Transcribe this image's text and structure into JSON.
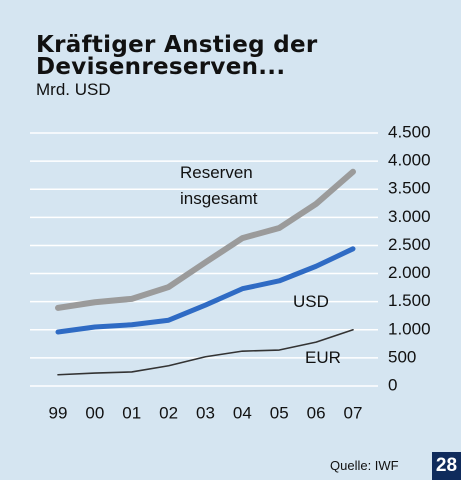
{
  "chart_data": {
    "type": "line",
    "title": "Kräftiger Anstieg der Devisenreserven...",
    "subtitle": "Mrd. USD",
    "categories": [
      "99",
      "00",
      "01",
      "02",
      "03",
      "04",
      "05",
      "06",
      "07"
    ],
    "series": [
      {
        "name": "Reserven insgesamt",
        "color": "#9b9b9b",
        "values": [
          1390,
          1490,
          1550,
          1760,
          2200,
          2630,
          2810,
          3240,
          3810
        ]
      },
      {
        "name": "USD",
        "color": "#2f6bc4",
        "values": [
          960,
          1050,
          1090,
          1170,
          1440,
          1730,
          1870,
          2130,
          2440
        ]
      },
      {
        "name": "EUR",
        "color": "#333333",
        "values": [
          200,
          230,
          250,
          360,
          520,
          620,
          640,
          780,
          1000
        ]
      }
    ],
    "ylim": [
      0,
      4500
    ],
    "yticks": [
      0,
      500,
      {
        "value": 1000,
        "label": "1.000"
      },
      {
        "value": 1500,
        "label": "1.500"
      },
      {
        "value": 2000,
        "label": "2.000"
      },
      {
        "value": 2500,
        "label": "2.500"
      },
      {
        "value": 3000,
        "label": "3.000"
      },
      {
        "value": 3500,
        "label": "3.500"
      },
      {
        "value": 4000,
        "label": "4.000"
      },
      {
        "value": 4500,
        "label": "4.500"
      }
    ],
    "grid": true,
    "source": "Quelle: IWF",
    "page_number": "28"
  }
}
